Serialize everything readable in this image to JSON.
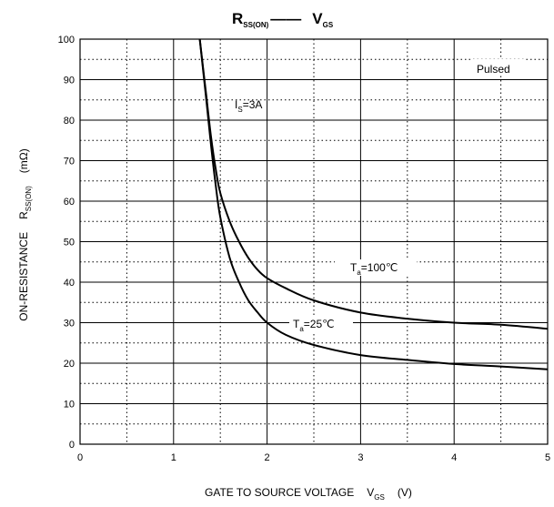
{
  "chart_data": {
    "type": "line",
    "title": {
      "main": "R",
      "main_sub": "SS(ON)",
      "sep": "——",
      "second": "V",
      "second_sub": "GS"
    },
    "xlabel": {
      "text": "GATE TO SOURCE VOLTAGE",
      "sym": "V",
      "sym_sub": "GS",
      "unit": "(V)"
    },
    "ylabel": {
      "text": "ON-RESISTANCE",
      "sym": "R",
      "sym_sub": "SS(ON)",
      "unit": "(mΩ)"
    },
    "xlim": [
      0,
      5
    ],
    "ylim": [
      0,
      100
    ],
    "x_ticks": [
      "0",
      "1",
      "2",
      "3",
      "4",
      "5"
    ],
    "y_ticks": [
      "0",
      "10",
      "20",
      "30",
      "40",
      "50",
      "60",
      "70",
      "80",
      "90",
      "100"
    ],
    "grid": true,
    "annotations": {
      "condition": {
        "text": "Pulsed"
      },
      "current": {
        "pre": "I",
        "sub": "S",
        "post": "=3A"
      }
    },
    "series": [
      {
        "name": "Ta=100℃",
        "label": {
          "pre": "T",
          "sub": "a",
          "post": "=100℃"
        },
        "x": [
          1.28,
          1.35,
          1.4,
          1.45,
          1.5,
          1.6,
          1.7,
          1.8,
          1.9,
          2.0,
          2.2,
          2.5,
          3.0,
          3.5,
          4.0,
          4.5,
          5.0
        ],
        "y": [
          100,
          86,
          76,
          68,
          62,
          55,
          50,
          46,
          43,
          41,
          38.5,
          35.5,
          32.5,
          31,
          30,
          29.5,
          28.5
        ]
      },
      {
        "name": "Ta=25℃",
        "label": {
          "pre": "T",
          "sub": "a",
          "post": "=25℃"
        },
        "x": [
          1.28,
          1.35,
          1.4,
          1.45,
          1.5,
          1.6,
          1.7,
          1.8,
          1.9,
          2.0,
          2.2,
          2.5,
          3.0,
          3.5,
          4.0,
          4.5,
          5.0
        ],
        "y": [
          100,
          85,
          74,
          64,
          56,
          46,
          40,
          35.5,
          32.5,
          30,
          27,
          24.5,
          22,
          20.8,
          19.8,
          19.2,
          18.5
        ]
      }
    ]
  }
}
